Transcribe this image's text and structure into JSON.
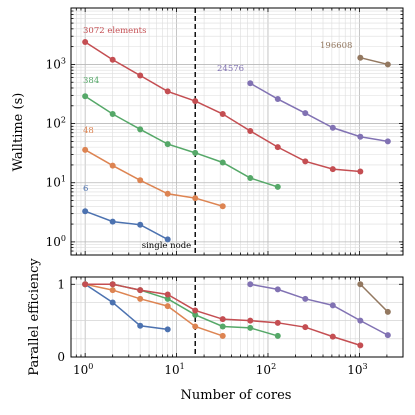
{
  "figure": {
    "xlabel": "Number of cores",
    "vline_x": 16,
    "vline_label": "single node"
  },
  "chart_data": [
    {
      "type": "line",
      "panel": "top",
      "title": "",
      "xlabel": "Number of cores",
      "ylabel": "Walltime (s)",
      "xscale": "log",
      "yscale": "log",
      "xlim": [
        0.7,
        3000
      ],
      "ylim": [
        0.6,
        9000
      ],
      "grid": true,
      "x_ticks": [
        {
          "v": 1,
          "l": "10",
          "e": "0"
        },
        {
          "v": 10,
          "l": "10",
          "e": "1"
        },
        {
          "v": 100,
          "l": "10",
          "e": "2"
        },
        {
          "v": 1000,
          "l": "10",
          "e": "3"
        }
      ],
      "y_ticks": [
        {
          "v": 1,
          "l": "10",
          "e": "0"
        },
        {
          "v": 10,
          "l": "10",
          "e": "1"
        },
        {
          "v": 100,
          "l": "10",
          "e": "2"
        },
        {
          "v": 1000,
          "l": "10",
          "e": "3"
        }
      ],
      "series": [
        {
          "name": "6",
          "color": "#4c72b0",
          "x": [
            1,
            2,
            4,
            8
          ],
          "y": [
            3.3,
            2.2,
            1.95,
            1.1
          ]
        },
        {
          "name": "48",
          "color": "#dd8452",
          "x": [
            1,
            2,
            4,
            8,
            16,
            32
          ],
          "y": [
            36,
            19.5,
            11,
            6.5,
            5.5,
            4
          ]
        },
        {
          "name": "384",
          "color": "#55a868",
          "x": [
            1,
            2,
            4,
            8,
            16,
            32,
            64,
            128
          ],
          "y": [
            290,
            145,
            80,
            45,
            32,
            22,
            12,
            8.5
          ]
        },
        {
          "name": "3072 elements",
          "color": "#c44e52",
          "x": [
            1,
            2,
            4,
            8,
            16,
            32,
            64,
            128,
            256,
            512,
            1024
          ],
          "y": [
            2400,
            1200,
            650,
            350,
            240,
            145,
            75,
            40,
            23,
            17,
            15.5
          ]
        },
        {
          "name": "24576",
          "color": "#8172b3",
          "x": [
            64,
            128,
            256,
            512,
            1024,
            2048
          ],
          "y": [
            480,
            260,
            150,
            85,
            60,
            50
          ]
        },
        {
          "name": "196608",
          "color": "#937860",
          "x": [
            1024,
            2048
          ],
          "y": [
            1300,
            1000
          ]
        }
      ]
    },
    {
      "type": "line",
      "panel": "bottom",
      "title": "",
      "xlabel": "Number of cores",
      "ylabel": "Parallel efficiency",
      "xscale": "log",
      "yscale": "linear",
      "xlim": [
        0.7,
        3000
      ],
      "ylim": [
        0,
        1.1
      ],
      "grid": true,
      "x_ticks": [
        {
          "v": 1,
          "l": "10",
          "e": "0"
        },
        {
          "v": 10,
          "l": "10",
          "e": "1"
        },
        {
          "v": 100,
          "l": "10",
          "e": "2"
        },
        {
          "v": 1000,
          "l": "10",
          "e": "3"
        }
      ],
      "y_ticks": [
        {
          "v": 0,
          "l": "0"
        },
        {
          "v": 1,
          "l": "1"
        }
      ],
      "series": [
        {
          "color": "#4c72b0",
          "x": [
            1,
            2,
            4,
            8
          ],
          "y": [
            1.0,
            0.75,
            0.43,
            0.38
          ]
        },
        {
          "color": "#dd8452",
          "x": [
            1,
            2,
            4,
            8,
            16,
            32
          ],
          "y": [
            1.0,
            0.92,
            0.8,
            0.7,
            0.42,
            0.29
          ]
        },
        {
          "color": "#55a868",
          "x": [
            1,
            2,
            4,
            8,
            16,
            32,
            64,
            128
          ],
          "y": [
            1.0,
            1.0,
            0.92,
            0.8,
            0.58,
            0.42,
            0.4,
            0.29
          ]
        },
        {
          "color": "#c44e52",
          "x": [
            1,
            2,
            4,
            8,
            16,
            32,
            64,
            128,
            256,
            512,
            1024
          ],
          "y": [
            1.0,
            1.0,
            0.92,
            0.86,
            0.64,
            0.52,
            0.5,
            0.47,
            0.41,
            0.28,
            0.16
          ]
        },
        {
          "color": "#8172b3",
          "x": [
            64,
            128,
            256,
            512,
            1024,
            2048
          ],
          "y": [
            1.0,
            0.93,
            0.8,
            0.71,
            0.5,
            0.3
          ]
        },
        {
          "color": "#937860",
          "x": [
            1024,
            2048
          ],
          "y": [
            1.0,
            0.62
          ]
        }
      ]
    }
  ]
}
